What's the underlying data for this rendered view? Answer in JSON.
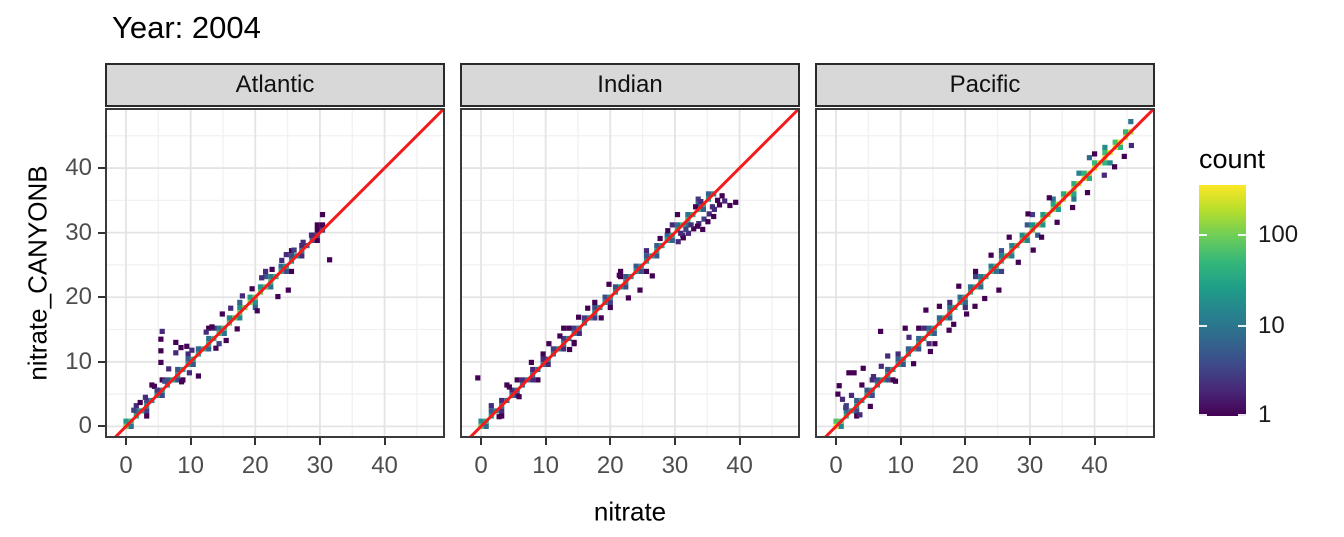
{
  "title": "Year: 2004",
  "axes": {
    "x_label": "nitrate",
    "y_label": "nitrate_CANYONB",
    "x_ticks": [
      0,
      10,
      20,
      30,
      40
    ],
    "y_ticks": [
      0,
      10,
      20,
      30,
      40
    ],
    "grid_major": [
      0,
      10,
      20,
      30,
      40
    ],
    "grid_minor": [
      5,
      15,
      25,
      35,
      45
    ]
  },
  "legend": {
    "title": "count",
    "ticks": [
      {
        "value": 100,
        "label": "100"
      },
      {
        "value": 10,
        "label": "10"
      },
      {
        "value": 1,
        "label": "1"
      }
    ]
  },
  "colors": {
    "identity_line": "#F31B1B",
    "strip_fill": "#D8D8D8",
    "panel_border": "#3a3a3a",
    "grid_major": "#E4E4E4",
    "grid_minor": "#F1F1F1",
    "axis_text": "#4D4D4D",
    "viridis": [
      "#440154",
      "#482878",
      "#3E4A89",
      "#31688E",
      "#26828E",
      "#1F9E89",
      "#35B779",
      "#6DCD59",
      "#B4DE2C",
      "#FDE725"
    ]
  },
  "chart_data": {
    "type": "heatmap",
    "subtype": "bin2d-scatter-density",
    "title": "Year: 2004",
    "xlabel": "nitrate",
    "ylabel": "nitrate_CANYONB",
    "x_range": [
      -3.25,
      49.35
    ],
    "y_range": [
      -1.8,
      49.3
    ],
    "bin_size": 0.8,
    "count_scale": {
      "type": "log10",
      "domain": [
        1,
        350
      ],
      "legend_ticks": [
        1,
        10,
        100
      ]
    },
    "identity_line": {
      "slope": 1,
      "intercept": 0
    },
    "band_pattern": [
      {
        "mod": 2,
        "rem": 0,
        "dy": 0.8,
        "f": 0.2
      },
      {
        "mod": 3,
        "rem": 1,
        "dy": -0.8,
        "f": 0.16
      },
      {
        "mod": 5,
        "rem": 2,
        "dy": 1.6,
        "f": 0.06
      },
      {
        "mod": 7,
        "rem": 4,
        "dy": -1.6,
        "f": 0.05
      },
      {
        "mod": 11,
        "rem": 5,
        "dy": 2.4,
        "f": 0.03
      }
    ],
    "panels": [
      {
        "facet": "Atlantic",
        "spine": [
          [
            0,
            0
          ],
          [
            30.4,
            30.4
          ]
        ],
        "count_knots": {
          "x": [
            0,
            1,
            3,
            6,
            9,
            12,
            15,
            17,
            19,
            21,
            23,
            25,
            27,
            29,
            30.4
          ],
          "count": [
            120,
            50,
            20,
            22,
            30,
            40,
            60,
            90,
            130,
            95,
            50,
            25,
            12,
            5,
            3
          ]
        },
        "outliers": [
          [
            5.6,
            14.7,
            2
          ],
          [
            5.4,
            9.9,
            1
          ],
          [
            5.4,
            11.7,
            1
          ],
          [
            5.4,
            13.5,
            1
          ],
          [
            7.7,
            13.0,
            1
          ],
          [
            7.7,
            11.4,
            2
          ],
          [
            8.5,
            12.2,
            1
          ],
          [
            9.4,
            12.4,
            1
          ],
          [
            10.2,
            11.8,
            2
          ],
          [
            11.2,
            7.8,
            1
          ],
          [
            8.6,
            6.9,
            1
          ],
          [
            9.8,
            8.3,
            2
          ],
          [
            12.4,
            14.6,
            2
          ],
          [
            13.3,
            15.4,
            1
          ],
          [
            14.9,
            17.4,
            1
          ],
          [
            16.2,
            18.3,
            2
          ],
          [
            18.0,
            20.2,
            2
          ],
          [
            19.5,
            21.3,
            1
          ],
          [
            21.0,
            23.0,
            2
          ],
          [
            22.6,
            24.3,
            1
          ],
          [
            24.1,
            25.7,
            2
          ],
          [
            25.1,
            21.1,
            1
          ],
          [
            24.8,
            26.6,
            2
          ],
          [
            26.0,
            27.3,
            3
          ],
          [
            27.4,
            28.5,
            2
          ],
          [
            28.7,
            29.6,
            2
          ],
          [
            29.6,
            30.4,
            1
          ],
          [
            31.5,
            25.8,
            1
          ],
          [
            23.5,
            20.1,
            1
          ],
          [
            20.3,
            17.9,
            1
          ],
          [
            17.2,
            15.1,
            1
          ],
          [
            15.5,
            13.3,
            1
          ],
          [
            3.0,
            4.5,
            2
          ],
          [
            2.2,
            3.7,
            1
          ],
          [
            1.2,
            2.5,
            3
          ],
          [
            4.4,
            6.2,
            1
          ],
          [
            6.6,
            8.9,
            2
          ],
          [
            6.0,
            7.0,
            4
          ],
          [
            4.9,
            5.6,
            3
          ],
          [
            13.9,
            12.1,
            1
          ]
        ]
      },
      {
        "facet": "Indian",
        "spine": [
          [
            0,
            0
          ],
          [
            36.5,
            36.5
          ]
        ],
        "count_knots": {
          "x": [
            0,
            1,
            3,
            6,
            10,
            14,
            18,
            22,
            26,
            29,
            32,
            34,
            35.5,
            36.5
          ],
          "count": [
            90,
            35,
            12,
            10,
            12,
            14,
            18,
            22,
            28,
            35,
            50,
            45,
            25,
            8
          ]
        },
        "outliers": [
          [
            -0.5,
            7.5,
            1
          ],
          [
            4.4,
            6.1,
            1
          ],
          [
            7.8,
            9.9,
            1
          ],
          [
            10.5,
            12.8,
            1
          ],
          [
            12.2,
            14.0,
            1
          ],
          [
            16.5,
            18.3,
            1
          ],
          [
            21.4,
            23.4,
            1
          ],
          [
            13.7,
            11.9,
            1
          ],
          [
            18.6,
            16.8,
            1
          ],
          [
            22.8,
            19.9,
            1
          ],
          [
            24.6,
            21.1,
            1
          ],
          [
            26.5,
            23.3,
            1
          ],
          [
            2.8,
            1.5,
            1
          ],
          [
            5.9,
            4.6,
            1
          ],
          [
            9.8,
            10.4,
            2
          ],
          [
            14.4,
            13.0,
            1
          ],
          [
            19.8,
            22.0,
            1
          ],
          [
            15.1,
            16.9,
            1
          ],
          [
            27.7,
            29.1,
            1
          ],
          [
            28.9,
            30.3,
            1
          ],
          [
            30.5,
            28.6,
            2
          ],
          [
            31.3,
            29.2,
            1
          ],
          [
            32.1,
            29.9,
            2
          ],
          [
            32.9,
            30.6,
            1
          ],
          [
            33.7,
            31.4,
            2
          ],
          [
            34.5,
            32.1,
            3
          ],
          [
            35.3,
            32.9,
            2
          ],
          [
            36.1,
            33.6,
            2
          ],
          [
            36.9,
            34.3,
            1
          ],
          [
            37.7,
            34.9,
            2
          ],
          [
            38.5,
            34.2,
            1
          ],
          [
            39.4,
            34.7,
            1
          ],
          [
            33.5,
            31.0,
            1
          ],
          [
            34.3,
            30.5,
            1
          ],
          [
            35.1,
            31.7,
            1
          ],
          [
            36.0,
            32.5,
            1
          ],
          [
            31.7,
            30.5,
            3
          ],
          [
            32.5,
            31.2,
            2
          ],
          [
            30.9,
            29.9,
            2
          ],
          [
            35.8,
            34.0,
            2
          ],
          [
            36.6,
            35.0,
            1
          ],
          [
            37.3,
            35.7,
            1
          ],
          [
            34.0,
            34.8,
            2
          ],
          [
            33.2,
            34.0,
            1
          ]
        ]
      },
      {
        "facet": "Pacific",
        "spine": [
          [
            0,
            0
          ],
          [
            46.2,
            46.2
          ]
        ],
        "count_knots": {
          "x": [
            0,
            1,
            3,
            6,
            10,
            14,
            18,
            22,
            26,
            30,
            34,
            38,
            41,
            43.5,
            45.5,
            46.2
          ],
          "count": [
            350,
            60,
            28,
            25,
            30,
            35,
            40,
            48,
            60,
            90,
            160,
            220,
            280,
            320,
            200,
            60
          ]
        },
        "outliers": [
          [
            6.9,
            14.7,
            1
          ],
          [
            2.0,
            8.3,
            1
          ],
          [
            2.8,
            8.3,
            1
          ],
          [
            10.7,
            15.2,
            1
          ],
          [
            13.9,
            18.0,
            1
          ],
          [
            29.7,
            32.9,
            1
          ],
          [
            25.2,
            21.1,
            1
          ],
          [
            23.0,
            19.8,
            1
          ],
          [
            21.5,
            18.6,
            1
          ],
          [
            17.5,
            14.9,
            1
          ],
          [
            15.3,
            12.8,
            1
          ],
          [
            12.0,
            9.7,
            1
          ],
          [
            9.2,
            7.0,
            1
          ],
          [
            5.3,
            3.1,
            1
          ],
          [
            3.7,
            1.8,
            2
          ],
          [
            1.0,
            4.2,
            2
          ],
          [
            0.3,
            5.0,
            1
          ],
          [
            44.6,
            41.8,
            1
          ],
          [
            45.7,
            43.5,
            2
          ],
          [
            43.1,
            40.2,
            1
          ],
          [
            41.5,
            38.9,
            2
          ],
          [
            38.9,
            36.2,
            1
          ],
          [
            36.6,
            33.9,
            1
          ],
          [
            34.2,
            31.6,
            1
          ],
          [
            31.8,
            29.3,
            1
          ],
          [
            8.0,
            10.9,
            2
          ],
          [
            19.0,
            21.7,
            1
          ],
          [
            26.8,
            29.3,
            1
          ],
          [
            33.0,
            35.4,
            1
          ],
          [
            40.0,
            42.2,
            1
          ],
          [
            30.5,
            27.3,
            1
          ],
          [
            28.2,
            25.4,
            1
          ],
          [
            4.2,
            9.0,
            1
          ],
          [
            0.5,
            6.3,
            1
          ],
          [
            1.5,
            2.9,
            3
          ],
          [
            2.4,
            4.8,
            2
          ],
          [
            16.0,
            18.6,
            1
          ],
          [
            11.3,
            13.8,
            2
          ],
          [
            7.0,
            9.3,
            2
          ],
          [
            5.8,
            7.7,
            2
          ],
          [
            20.2,
            17.4,
            1
          ],
          [
            24.0,
            26.5,
            1
          ],
          [
            14.6,
            11.6,
            1
          ],
          [
            18.2,
            15.8,
            1
          ]
        ]
      }
    ]
  }
}
